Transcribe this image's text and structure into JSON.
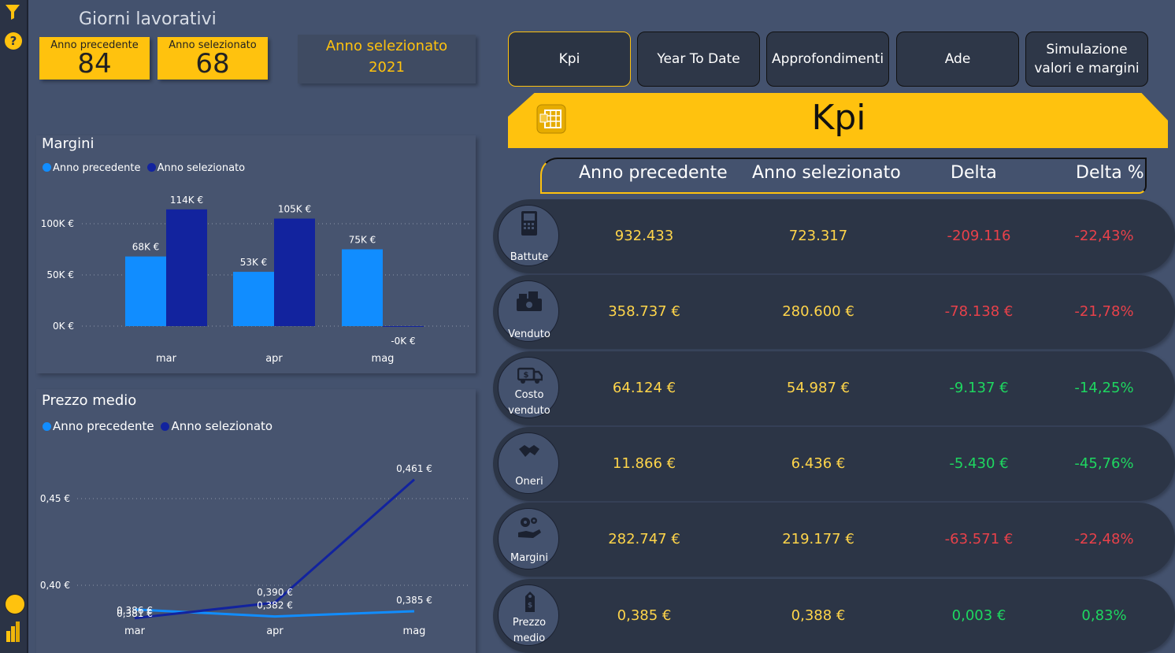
{
  "header": {
    "giorni_title": "Giorni lavorativi",
    "card_prev": {
      "label": "Anno precedente",
      "value": "84"
    },
    "card_sel": {
      "label": "Anno selezionato",
      "value": "68"
    },
    "selected_year_label": "Anno selezionato",
    "selected_year_value": "2021"
  },
  "tabs": [
    {
      "label": "Kpi",
      "active": true
    },
    {
      "label": "Year To Date"
    },
    {
      "label": "Approfondimenti"
    },
    {
      "label": "Ade"
    },
    {
      "label": "Simulazione valori e margini"
    }
  ],
  "kpi": {
    "title": "Kpi",
    "columns": [
      "Anno precedente",
      "Anno selezionato",
      "Delta",
      "Delta %"
    ],
    "rows": [
      {
        "label": "Battute",
        "prev": "932.433",
        "sel": "723.317",
        "delta": "-209.116",
        "delta_pct": "-22,43%",
        "icon": "cash-register-icon",
        "status": "negative"
      },
      {
        "label": "Venduto",
        "prev": "358.737 €",
        "sel": "280.600 €",
        "delta": "-78.138 €",
        "delta_pct": "-21,78%",
        "icon": "money-stack-icon",
        "status": "negative"
      },
      {
        "label": "Costo venduto",
        "prev": "64.124 €",
        "sel": "54.987 €",
        "delta": "-9.137 €",
        "delta_pct": "-14,25%",
        "icon": "money-truck-icon",
        "status": "positive"
      },
      {
        "label": "Oneri",
        "prev": "11.866 €",
        "sel": "6.436 €",
        "delta": "-5.430 €",
        "delta_pct": "-45,76%",
        "icon": "handshake-icon",
        "status": "positive"
      },
      {
        "label": "Margini",
        "prev": "282.747 €",
        "sel": "219.177 €",
        "delta": "-63.571 €",
        "delta_pct": "-22,48%",
        "icon": "hand-gears-icon",
        "status": "negative"
      },
      {
        "label": "Prezzo medio",
        "prev": "0,385 €",
        "sel": "0,388 €",
        "delta": "0,003 €",
        "delta_pct": "0,83%",
        "icon": "price-tag-icon",
        "status": "positive"
      }
    ]
  },
  "colors": {
    "accent": "#ffc20e",
    "prev_series": "#118dff",
    "sel_series": "#12239e",
    "negative": "#e8414a",
    "positive": "#1ed760"
  },
  "chart_data": [
    {
      "type": "bar",
      "title": "Margini",
      "legend": [
        "Anno precedente",
        "Anno selezionato"
      ],
      "legend_position": "top-left",
      "categories": [
        "mar",
        "apr",
        "mag"
      ],
      "series": [
        {
          "name": "Anno precedente",
          "values": [
            68,
            53,
            75
          ],
          "labels": [
            "68K €",
            "53K €",
            "75K €"
          ]
        },
        {
          "name": "Anno selezionato",
          "values": [
            114,
            105,
            -0.2
          ],
          "labels": [
            "114K €",
            "105K €",
            "-0K €"
          ]
        }
      ],
      "yticks": [
        "0K €",
        "50K €",
        "100K €"
      ],
      "ylim": [
        0,
        120
      ],
      "grid": true
    },
    {
      "type": "line",
      "title": "Prezzo medio",
      "legend": [
        "Anno precedente",
        "Anno selezionato"
      ],
      "legend_position": "top-left",
      "categories": [
        "mar",
        "apr",
        "mag"
      ],
      "series": [
        {
          "name": "Anno precedente",
          "values": [
            0.386,
            0.382,
            0.385
          ],
          "labels": [
            "0,386 €",
            "0,382 €",
            "0,385 €"
          ]
        },
        {
          "name": "Anno selezionato",
          "values": [
            0.381,
            0.39,
            0.461
          ],
          "labels": [
            "0,381 €",
            "0,390 €",
            "0,461 €"
          ]
        }
      ],
      "yticks": [
        "0,40 €",
        "0,45 €"
      ],
      "ylim": [
        0.375,
        0.47
      ],
      "grid": true
    }
  ]
}
